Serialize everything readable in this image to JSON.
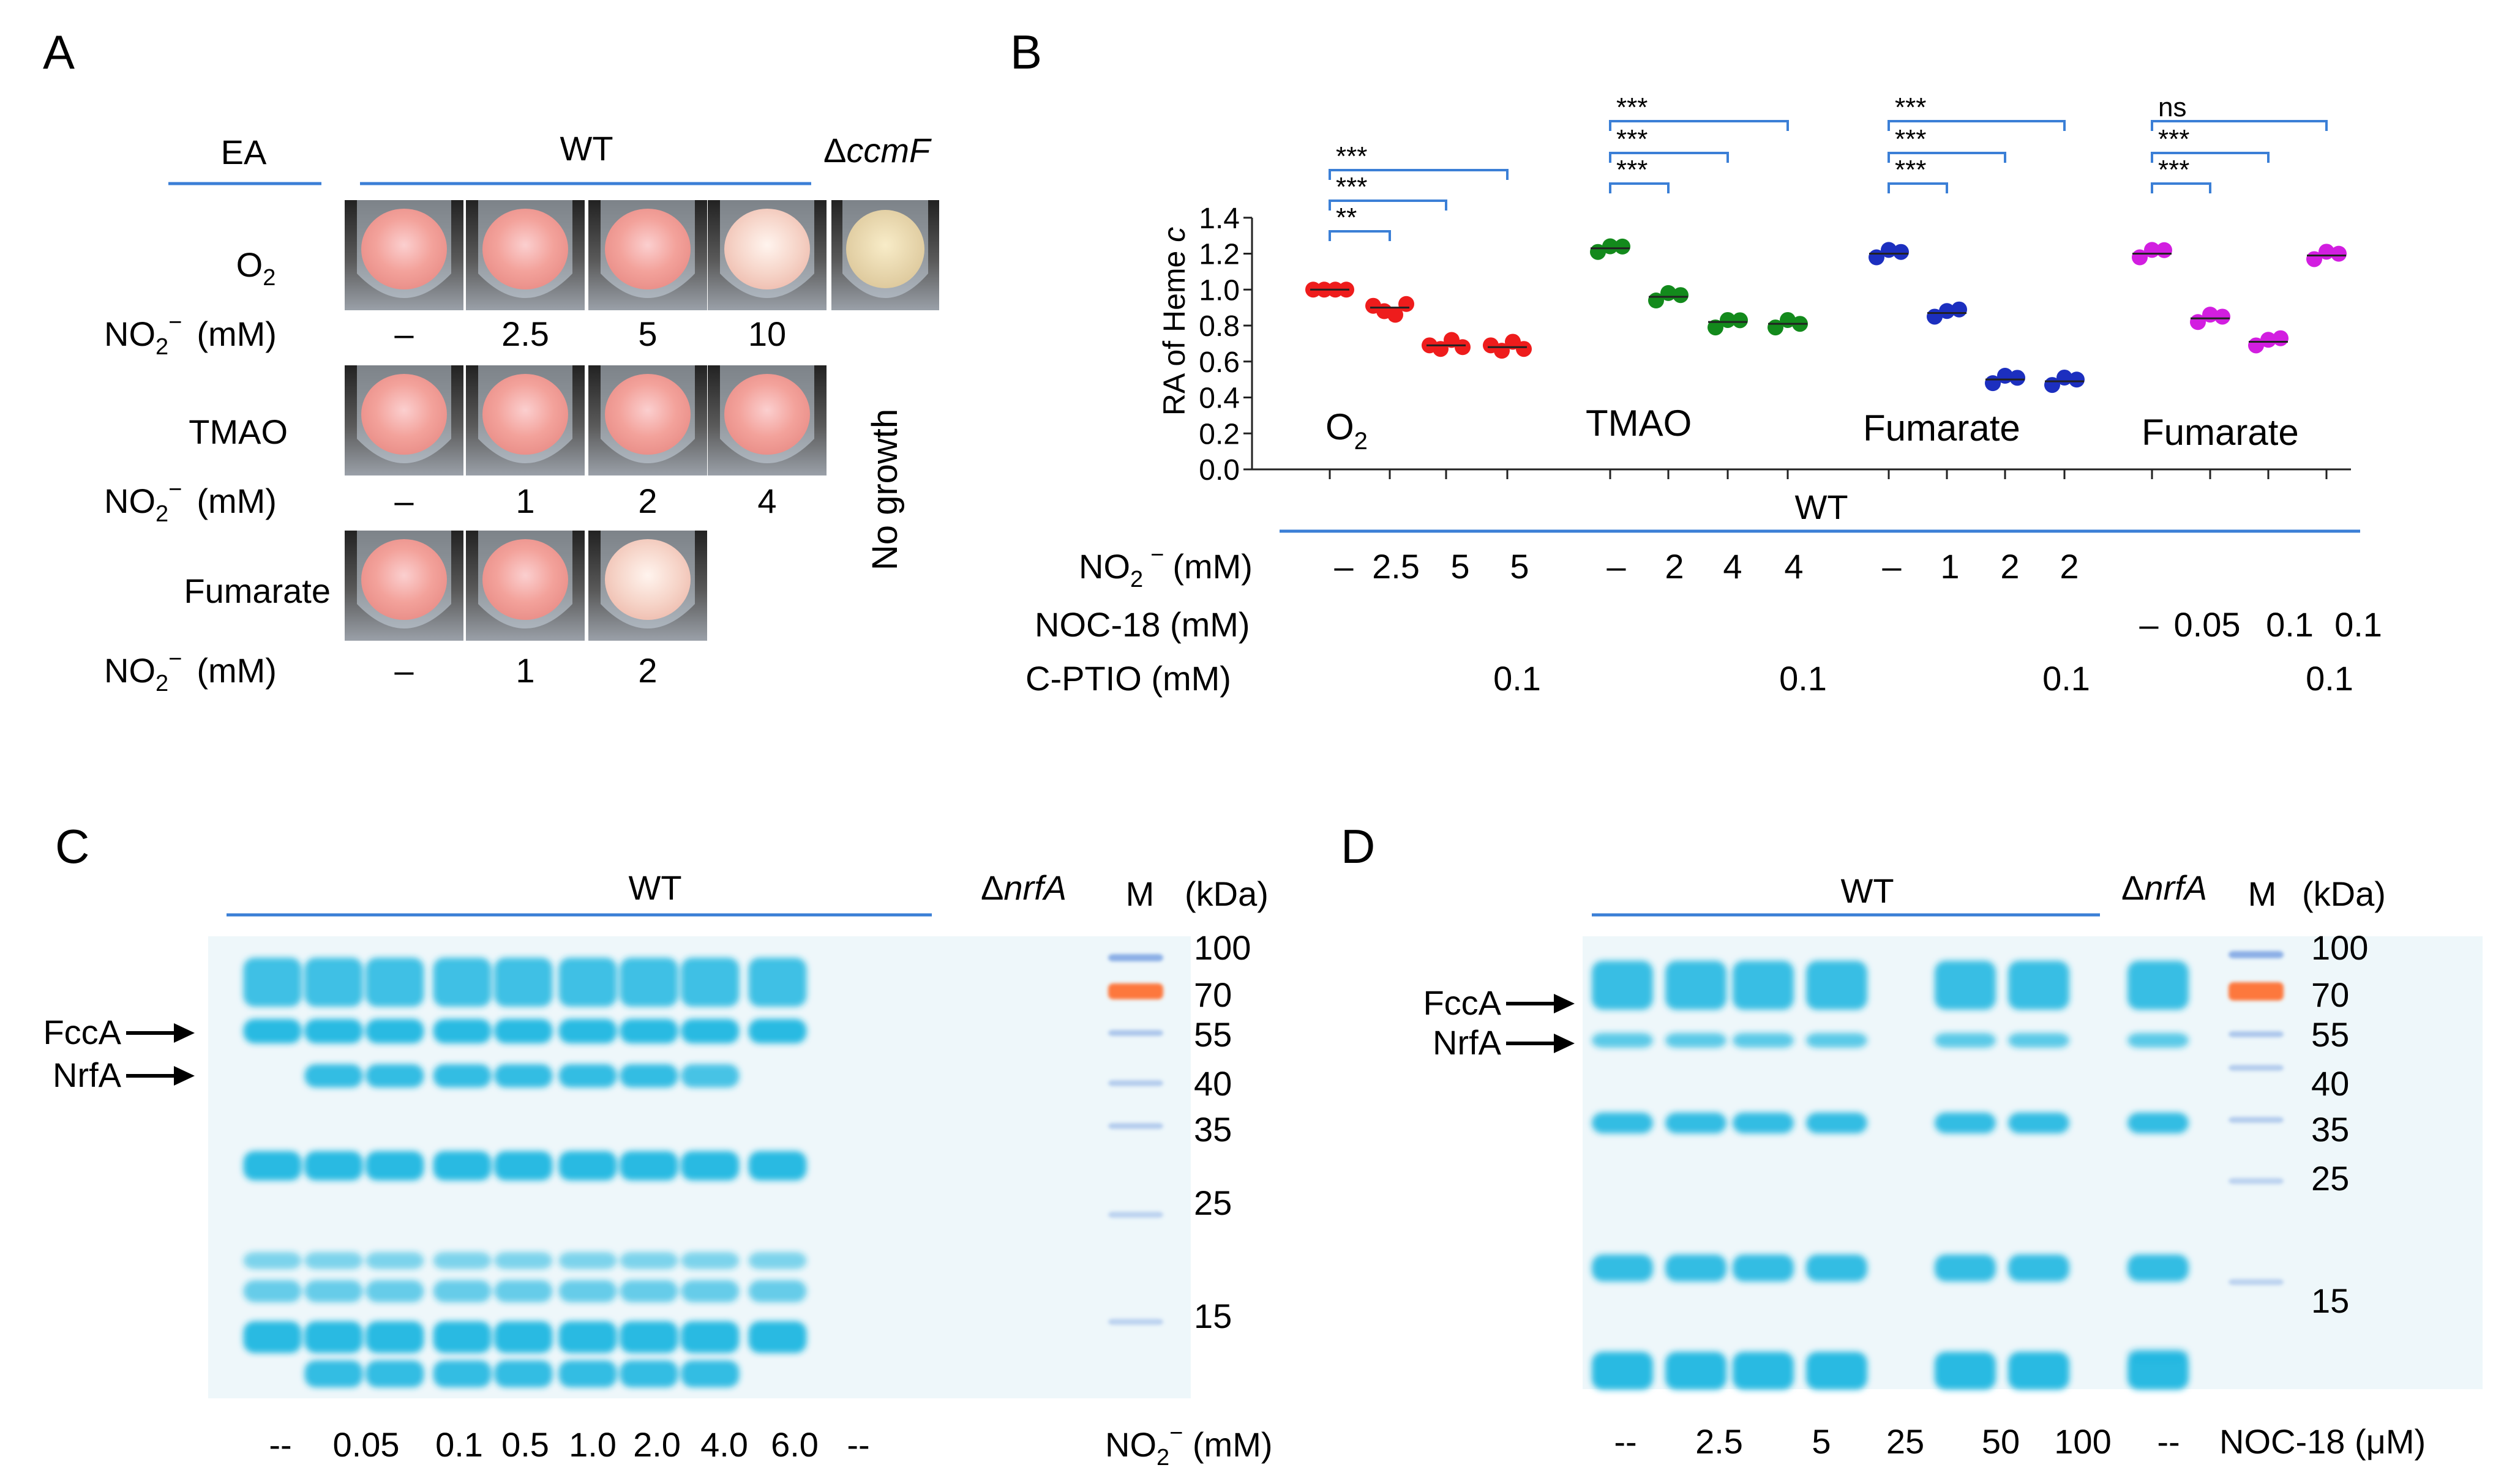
{
  "panel_letters": {
    "a": "A",
    "b": "B",
    "c": "C",
    "d": "D"
  },
  "colors": {
    "red": "#ee1c1c",
    "green": "#138a1c",
    "blue": "#1c2fbf",
    "magenta": "#d21ee0",
    "line": "#3b7fd6",
    "gel": "#1fb6e0"
  },
  "panelA": {
    "ea": "EA",
    "wt": "WT",
    "mutant_prefix": "Δ",
    "mutant_italic": "ccmF",
    "no_growth": "No growth",
    "rows": [
      {
        "ea": "O",
        "ea_sub": "2",
        "no2": "NO",
        "no2_sub": "2",
        "no2_sup": "−",
        "unit": "(mM)",
        "doses": [
          "–",
          "2.5",
          "5",
          "10"
        ]
      },
      {
        "ea": "TMAO",
        "no2": "NO",
        "no2_sub": "2",
        "no2_sup": "−",
        "unit": "(mM)",
        "doses": [
          "–",
          "1",
          "2",
          "4"
        ]
      },
      {
        "ea": "Fumarate",
        "no2": "NO",
        "no2_sub": "2",
        "no2_sup": "−",
        "unit": "(mM)",
        "doses": [
          "–",
          "1",
          "2"
        ]
      }
    ]
  },
  "panelB": {
    "stars": [
      "***",
      "***",
      "**",
      "***",
      "***",
      "***",
      "***",
      "***",
      "***",
      "ns",
      "***",
      "***"
    ],
    "wt": "WT",
    "rows": [
      {
        "label": "NO",
        "sub": "2",
        "sup": "−",
        "unit": "(mM)",
        "values": [
          "–",
          "2.5",
          "5",
          "5",
          "–",
          "2",
          "4",
          "4",
          "–",
          "1",
          "2",
          "2"
        ]
      },
      {
        "label": "NOC-18 (mM)",
        "values": [
          "–",
          "0.05",
          "0.1",
          "0.1"
        ]
      },
      {
        "label": "C-PTIO (mM)",
        "values": [
          "0.1",
          "0.1",
          "0.1",
          "0.1"
        ]
      }
    ]
  },
  "chart_data": {
    "type": "scatter",
    "title": "",
    "xlabel": "",
    "ylabel_prefix": "RA of Heme ",
    "ylabel_italic": "c",
    "ylim": [
      0,
      1.4
    ],
    "yticks": [
      "0.0",
      "0.2",
      "0.4",
      "0.6",
      "0.8",
      "1.0",
      "1.2",
      "1.4"
    ],
    "groups": [
      {
        "name": "O",
        "sub": "2",
        "color_key": "red",
        "values": [
          1.0,
          0.9,
          0.69,
          0.68
        ],
        "points": [
          [
            1.0,
            1.0,
            1.0,
            1.0
          ],
          [
            0.91,
            0.88,
            0.86,
            0.92
          ],
          [
            0.69,
            0.67,
            0.72,
            0.68
          ],
          [
            0.69,
            0.66,
            0.71,
            0.67
          ]
        ]
      },
      {
        "name": "TMAO",
        "color_key": "green",
        "values": [
          1.23,
          0.96,
          0.82,
          0.81
        ],
        "points": [
          [
            1.23,
            1.2,
            1.26
          ],
          [
            0.96,
            0.94,
            0.99
          ],
          [
            0.81,
            0.79,
            0.85
          ],
          [
            0.81,
            0.79,
            0.83
          ]
        ]
      },
      {
        "name": "Fumarate",
        "color_key": "blue",
        "values": [
          1.2,
          0.87,
          0.5,
          0.49
        ],
        "points": [
          [
            1.2,
            1.18,
            1.23
          ],
          [
            0.87,
            0.84,
            0.91
          ],
          [
            0.5,
            0.48,
            0.53
          ],
          [
            0.49,
            0.47,
            0.52
          ]
        ]
      },
      {
        "name": "Fumarate",
        "color_key": "magenta",
        "values": [
          1.2,
          0.84,
          0.71,
          1.19
        ],
        "points": [
          [
            1.2,
            1.18,
            1.24
          ],
          [
            0.84,
            0.82,
            0.87
          ],
          [
            0.71,
            0.68,
            0.75
          ],
          [
            1.19,
            1.17,
            1.22
          ]
        ]
      }
    ]
  },
  "panelC": {
    "wt": "WT",
    "mutant_prefix": "Δ",
    "mutant_italic": "nrfA",
    "marker": "M",
    "kda": "(kDa)",
    "markers": [
      "100",
      "70",
      "55",
      "40",
      "35",
      "25",
      "15"
    ],
    "bands": [
      "FccA",
      "NrfA"
    ],
    "lanes": [
      "--",
      "0.05",
      "0.1",
      "0.5",
      "1.0",
      "2.0",
      "4.0",
      "6.0",
      "--"
    ],
    "xlabel_prefix": "NO",
    "xlabel_sub": "2",
    "xlabel_sup": "−",
    "xlabel_unit": " (mM)"
  },
  "panelD": {
    "wt": "WT",
    "mutant_prefix": "Δ",
    "mutant_italic": "nrfA",
    "marker": "M",
    "kda": "(kDa)",
    "markers": [
      "100",
      "70",
      "55",
      "40",
      "35",
      "25",
      "15"
    ],
    "bands": [
      "FccA",
      "NrfA"
    ],
    "lanes": [
      "--",
      "2.5",
      "5",
      "25",
      "50",
      "100",
      "--"
    ],
    "xlabel": "NOC-18 (μM)"
  }
}
